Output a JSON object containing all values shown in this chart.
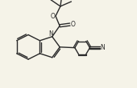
{
  "bg_color": "#f5f3e8",
  "bond_color": "#2a2a2a",
  "atom_color": "#2a2a2a",
  "bond_width": 1.0,
  "figsize": [
    1.7,
    1.1
  ],
  "dpi": 100,
  "xlim": [
    0,
    10
  ],
  "ylim": [
    0,
    6.5
  ]
}
